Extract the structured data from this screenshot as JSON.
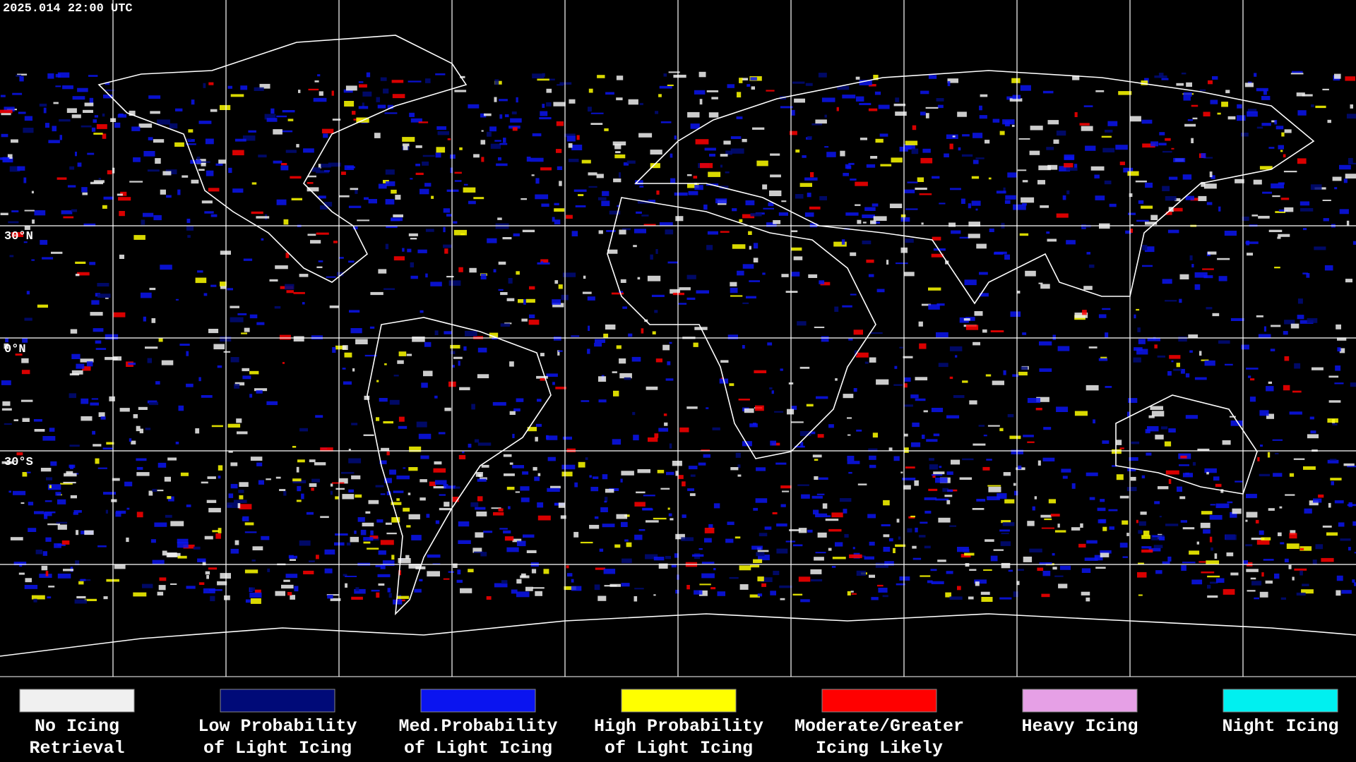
{
  "timestamp": "2025.014 22:00 UTC",
  "latitude_labels": [
    "30°N",
    "0°N",
    "30°S"
  ],
  "legend": [
    {
      "lines": [
        "No Icing",
        "Retrieval"
      ],
      "color": "#f0f0f0"
    },
    {
      "lines": [
        "Low Probability",
        "of Light Icing"
      ],
      "color": "#000a78"
    },
    {
      "lines": [
        "Med.Probability",
        "of Light Icing"
      ],
      "color": "#0a14f0"
    },
    {
      "lines": [
        "High Probability",
        "of Light Icing"
      ],
      "color": "#ffff00"
    },
    {
      "lines": [
        "Moderate/Greater",
        "Icing Likely"
      ],
      "color": "#ff0000"
    },
    {
      "lines": [
        "Heavy Icing"
      ],
      "color": "#e6a0e6"
    },
    {
      "lines": [
        "Night Icing"
      ],
      "color": "#00f0f0"
    }
  ]
}
